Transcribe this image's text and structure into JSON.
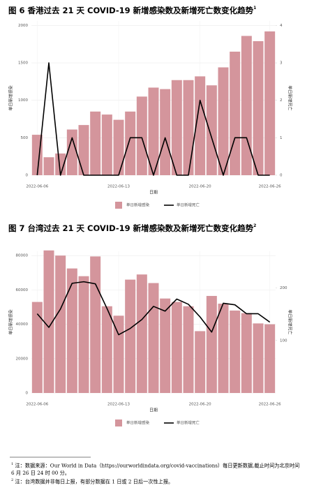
{
  "chart_data": [
    {
      "type": "combo",
      "title": "图 6 香港过去 21 天 COVID-19 新增感染数及新增死亡数变化趋势",
      "title_note": "1",
      "categories": [
        "2022-06-06",
        null,
        null,
        null,
        null,
        null,
        null,
        "2022-06-13",
        null,
        null,
        null,
        null,
        null,
        null,
        "2022-06-20",
        null,
        null,
        null,
        null,
        null,
        "2022-06-26"
      ],
      "xlabel": "日期",
      "ylabel": "单日新增感染",
      "y2label": "单日新增死亡",
      "ylim": [
        0,
        2060
      ],
      "yticks": [
        0,
        500,
        1000,
        1500,
        2000
      ],
      "y2lim": [
        0,
        4.12
      ],
      "y2ticks": [
        0,
        1,
        2,
        3,
        4
      ],
      "grid": true,
      "series": [
        {
          "name": "单日新增感染",
          "type": "bar",
          "color": "#d4959c",
          "values": [
            540,
            240,
            290,
            610,
            670,
            850,
            810,
            740,
            850,
            1050,
            1170,
            1150,
            1270,
            1270,
            1320,
            1200,
            1440,
            1650,
            1860,
            1790,
            1920
          ]
        },
        {
          "name": "单日新增死亡",
          "type": "line",
          "axis": "y2",
          "color": "#000000",
          "values": [
            0,
            3,
            0,
            1,
            0,
            0,
            0,
            0,
            1,
            1,
            0,
            1,
            0,
            0,
            2,
            1,
            0,
            1,
            1,
            0,
            0
          ]
        }
      ]
    },
    {
      "type": "combo",
      "title": "图 7 台湾过去 21 天 COVID-19 新增感染数及新增死亡数变化趋势",
      "title_note": "2",
      "categories": [
        "2022-06-06",
        null,
        null,
        null,
        null,
        null,
        null,
        "2022-06-13",
        null,
        null,
        null,
        null,
        null,
        null,
        "2022-06-20",
        null,
        null,
        null,
        null,
        null,
        "2022-06-26"
      ],
      "xlabel": "日期",
      "ylabel": "单日新增感染",
      "y2label": "单日新增死亡",
      "ylim": [
        0,
        82500
      ],
      "yticks": [
        0,
        20000,
        40000,
        60000,
        80000
      ],
      "y2lim": [
        0,
        270
      ],
      "y2ticks": [
        100,
        200
      ],
      "grid": true,
      "series": [
        {
          "name": "单日新增感染",
          "type": "bar",
          "color": "#d4959c",
          "values": [
            53000,
            83000,
            80000,
            72500,
            68000,
            79500,
            50500,
            45000,
            66000,
            69000,
            64000,
            55000,
            53000,
            50500,
            36000,
            56500,
            52000,
            48000,
            46500,
            40500,
            40000
          ]
        },
        {
          "name": "单日新增死亡",
          "type": "line",
          "axis": "y2",
          "color": "#000000",
          "values": [
            151,
            125,
            160,
            209,
            212,
            208,
            161,
            111,
            123,
            140,
            165,
            156,
            179,
            169,
            145,
            116,
            171,
            168,
            151,
            151,
            135
          ]
        }
      ]
    }
  ],
  "footnotes": [
    {
      "mark": "1",
      "text": "注：数据来源：Our World in Data（https://ourworldindata.org/covid-vaccinations）每日更新数据,截止时间为北京时间 6 月 26 日 24 时 00 分。"
    },
    {
      "mark": "2",
      "text": "注：台湾数据并非每日上报，有部分数据在 1 日或 2 日后一次性上报。"
    }
  ]
}
